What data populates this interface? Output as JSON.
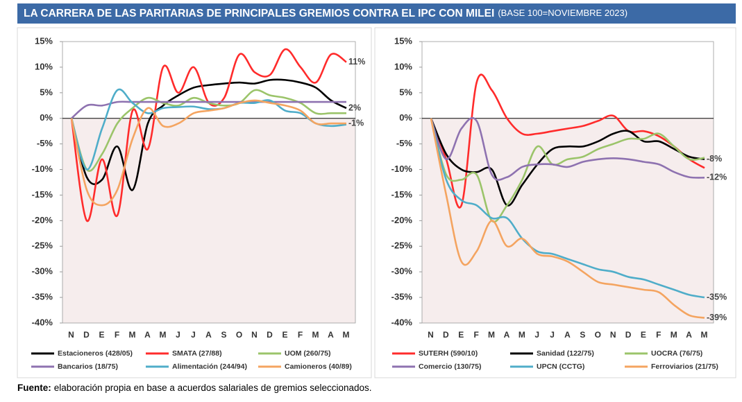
{
  "title": "LA CARRERA DE LAS PARITARIAS DE PRINCIPALES GREMIOS CONTRA EL IPC CON MILEI",
  "subtitle": "(BASE 100=NOVIEMBRE 2023)",
  "source": {
    "label": "Fuente:",
    "text": "elaboración propia en base a acuerdos salariales de gremios seleccionados."
  },
  "chart_data": [
    {
      "type": "line",
      "categories": [
        "N",
        "D",
        "E",
        "F",
        "M",
        "A",
        "M",
        "J",
        "J",
        "A",
        "S",
        "O",
        "N",
        "D",
        "E",
        "F",
        "M",
        "A",
        "M"
      ],
      "ylim": [
        -40,
        15
      ],
      "yticks": [
        {
          "value": 15,
          "label": "15%"
        },
        {
          "value": 10,
          "label": "10%"
        },
        {
          "value": 5,
          "label": "5%"
        },
        {
          "value": 0,
          "label": "0%"
        },
        {
          "value": -5,
          "label": "-5%"
        },
        {
          "value": -10,
          "label": "-10%"
        },
        {
          "value": -15,
          "label": "-15%"
        },
        {
          "value": -20,
          "label": "-20%"
        },
        {
          "value": -25,
          "label": "-25%"
        },
        {
          "value": -30,
          "label": "-30%"
        },
        {
          "value": -35,
          "label": "-35%"
        },
        {
          "value": -40,
          "label": "-40%"
        }
      ],
      "series": [
        {
          "name": "Estacioneros (428/05)",
          "color": "#000000",
          "values": [
            0,
            -11.5,
            -12,
            -5.5,
            -14,
            -1,
            2.5,
            4.5,
            6,
            6.5,
            6.8,
            7,
            6.8,
            7.5,
            7.5,
            7,
            6,
            3.5,
            2
          ],
          "value_labels": [
            null,
            null,
            null,
            null,
            null,
            null,
            null,
            null,
            null,
            null,
            null,
            null,
            null,
            null,
            null,
            null,
            null,
            null,
            "2%"
          ]
        },
        {
          "name": "SMATA (27/88)",
          "color": "#ff2b2b",
          "values": [
            0,
            -20,
            -8,
            -19,
            1.5,
            -6,
            10,
            5,
            10,
            3,
            4,
            12.5,
            9,
            8.5,
            13.5,
            10,
            7,
            12.5,
            11
          ],
          "value_labels": [
            null,
            null,
            null,
            null,
            null,
            null,
            null,
            null,
            null,
            null,
            null,
            null,
            null,
            null,
            null,
            null,
            null,
            null,
            "11%"
          ]
        },
        {
          "name": "UOM (260/75)",
          "color": "#9bc46a",
          "values": [
            0,
            -10,
            -7,
            -1,
            2,
            4,
            3,
            2.5,
            4,
            3,
            2.5,
            3,
            5.5,
            4.5,
            4,
            3,
            1,
            1,
            1
          ]
        },
        {
          "name": "Bancarios (18/75)",
          "color": "#8e72b0",
          "values": [
            0,
            2.5,
            2.5,
            3.2,
            3.2,
            3.2,
            3.2,
            3.2,
            3.2,
            3.2,
            3.2,
            3.2,
            3.2,
            3.2,
            3.2,
            3.2,
            3.2,
            3.2,
            3.2
          ]
        },
        {
          "name": "Alimentación (244/94)",
          "color": "#4fadc9",
          "values": [
            0,
            -10,
            -2,
            5.5,
            3,
            1,
            2,
            2.2,
            2.3,
            1.8,
            2,
            3,
            3,
            3.5,
            1.5,
            1,
            -1,
            -1.5,
            -1.2
          ]
        },
        {
          "name": "Camioneros (40/89)",
          "color": "#f4a460",
          "values": [
            0,
            -14,
            -17,
            -14,
            -4,
            2,
            -1.5,
            -1,
            1,
            1.5,
            2,
            3,
            3.5,
            3,
            2.5,
            1.5,
            -1,
            -1,
            -1
          ],
          "value_labels": [
            null,
            null,
            null,
            null,
            null,
            null,
            null,
            null,
            null,
            null,
            null,
            null,
            null,
            null,
            null,
            null,
            null,
            null,
            "-1%"
          ]
        }
      ]
    },
    {
      "type": "line",
      "categories": [
        "N",
        "D",
        "E",
        "F",
        "M",
        "A",
        "M",
        "J",
        "J",
        "A",
        "S",
        "O",
        "N",
        "D",
        "E",
        "F",
        "M",
        "A",
        "M"
      ],
      "ylim": [
        -40,
        15
      ],
      "yticks": [
        {
          "value": 15,
          "label": "15%"
        },
        {
          "value": 10,
          "label": "10%"
        },
        {
          "value": 5,
          "label": "5%"
        },
        {
          "value": 0,
          "label": "0%"
        },
        {
          "value": -5,
          "label": "-5%"
        },
        {
          "value": -10,
          "label": "-10%"
        },
        {
          "value": -15,
          "label": "-15%"
        },
        {
          "value": -20,
          "label": "-20%"
        },
        {
          "value": -25,
          "label": "-25%"
        },
        {
          "value": -30,
          "label": "-30%"
        },
        {
          "value": -35,
          "label": "-35%"
        },
        {
          "value": -40,
          "label": "-40%"
        }
      ],
      "series": [
        {
          "name": "SUTERH (590/10)",
          "color": "#ff2b2b",
          "values": [
            0,
            -8,
            -17,
            7,
            5.5,
            0,
            -3,
            -3,
            -2.5,
            -2,
            -1.5,
            -0.5,
            0.5,
            -2.5,
            -2.5,
            -3.5,
            -5.5,
            -8,
            -9.7
          ]
        },
        {
          "name": "Sanidad (122/75)",
          "color": "#000000",
          "values": [
            0,
            -7,
            -10,
            -10.5,
            -10,
            -17,
            -13,
            -9,
            -6,
            -5.5,
            -5.5,
            -4.5,
            -3,
            -2.5,
            -4.5,
            -4.5,
            -6,
            -7.5,
            -8
          ],
          "value_labels": [
            null,
            null,
            null,
            null,
            null,
            null,
            null,
            null,
            null,
            null,
            null,
            null,
            null,
            null,
            null,
            null,
            null,
            null,
            "-8%"
          ]
        },
        {
          "name": "UOCRA (76/75)",
          "color": "#9bc46a",
          "values": [
            0,
            -11,
            -12,
            -11,
            -20,
            -17,
            -12,
            -5.5,
            -9,
            -8,
            -7.5,
            -6,
            -5,
            -4,
            -4,
            -3,
            -5.5,
            -8,
            -7.7
          ]
        },
        {
          "name": "Comercio (130/75)",
          "color": "#8e72b0",
          "values": [
            0,
            -8,
            -2,
            -0.5,
            -11,
            -11.5,
            -9.5,
            -9,
            -9,
            -9.5,
            -8.5,
            -8,
            -7.8,
            -8,
            -8.5,
            -9,
            -10.5,
            -11.5,
            -11.6
          ],
          "value_labels": [
            null,
            null,
            null,
            null,
            null,
            null,
            null,
            null,
            null,
            null,
            null,
            null,
            null,
            null,
            null,
            null,
            null,
            null,
            "-12%"
          ]
        },
        {
          "name": "UPCN (CCTG)",
          "color": "#4fadc9",
          "values": [
            0,
            -12,
            -16,
            -17,
            -19.5,
            -19.5,
            -23.5,
            -26,
            -26.5,
            -27.5,
            -28.5,
            -29.5,
            -30,
            -31,
            -31.5,
            -32.5,
            -33.5,
            -34.5,
            -35
          ],
          "value_labels": [
            null,
            null,
            null,
            null,
            null,
            null,
            null,
            null,
            null,
            null,
            null,
            null,
            null,
            null,
            null,
            null,
            null,
            null,
            "-35%"
          ]
        },
        {
          "name": "Ferroviarios (21/75)",
          "color": "#f4a460",
          "values": [
            0,
            -15,
            -28,
            -26,
            -20,
            -25,
            -23.5,
            -26.5,
            -27,
            -28,
            -30,
            -32,
            -32.5,
            -33,
            -33.5,
            -34,
            -36.5,
            -38.5,
            -39
          ],
          "value_labels": [
            null,
            null,
            null,
            null,
            null,
            null,
            null,
            null,
            null,
            null,
            null,
            null,
            null,
            null,
            null,
            null,
            null,
            null,
            "-39%"
          ]
        }
      ]
    }
  ]
}
